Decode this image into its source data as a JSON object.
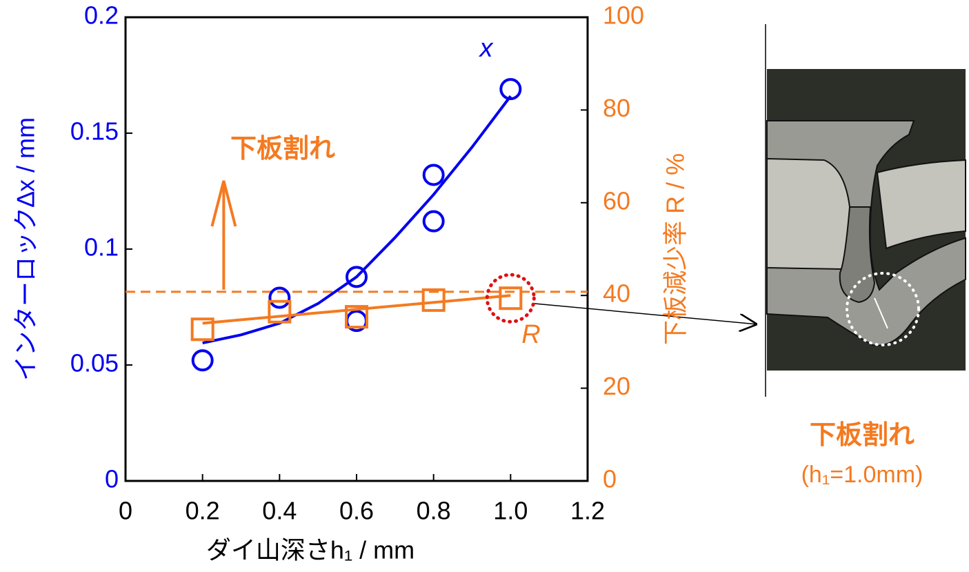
{
  "chart_data": {
    "type": "scatter",
    "x_label": "ダイ山深さh₁ / mm",
    "y_label": "インターロック∆x / mm",
    "y2_label": "下板減少率 R / %",
    "xlim": [
      0,
      1.2
    ],
    "xticks": [
      0,
      0.2,
      0.4,
      0.6,
      0.8,
      {
        "value": 1,
        "label": "1.0"
      },
      1.2
    ],
    "ylim": [
      0,
      0.2
    ],
    "yticks": [
      0,
      0.05,
      0.1,
      0.15,
      0.2
    ],
    "y2lim": [
      0,
      100
    ],
    "y2ticks": [
      0,
      20,
      40,
      60,
      80,
      100
    ],
    "series": [
      {
        "name": "x",
        "color": "#0000ee",
        "marker": "circle",
        "x": [
          0.2,
          0.4,
          0.6,
          0.6,
          0.8,
          0.8,
          1.0
        ],
        "values": [
          0.052,
          0.079,
          0.088,
          0.069,
          0.132,
          0.112,
          0.169
        ],
        "fit_x": [
          0.2,
          0.3,
          0.4,
          0.5,
          0.6,
          0.7,
          0.8,
          0.9,
          1.0
        ],
        "fit_values": [
          0.0595,
          0.063,
          0.068,
          0.0765,
          0.088,
          0.105,
          0.1235,
          0.144,
          0.166
        ]
      },
      {
        "name": "R",
        "color": "#f47a20",
        "marker": "square",
        "axis": "y2",
        "x": [
          0.2,
          0.4,
          0.6,
          0.8,
          1.0
        ],
        "values": [
          32.7,
          36.5,
          35.4,
          39,
          39.4
        ],
        "fit_x": [
          0.2,
          1.0
        ],
        "fit_values": [
          34,
          40
        ]
      }
    ],
    "threshold": {
      "value": 40.8,
      "axis": "y2",
      "label": "下板割れ",
      "arrow_x": 0.255
    },
    "image_caption": "下板割れ",
    "image_subcaption": "(h₁=1.0mm)"
  }
}
